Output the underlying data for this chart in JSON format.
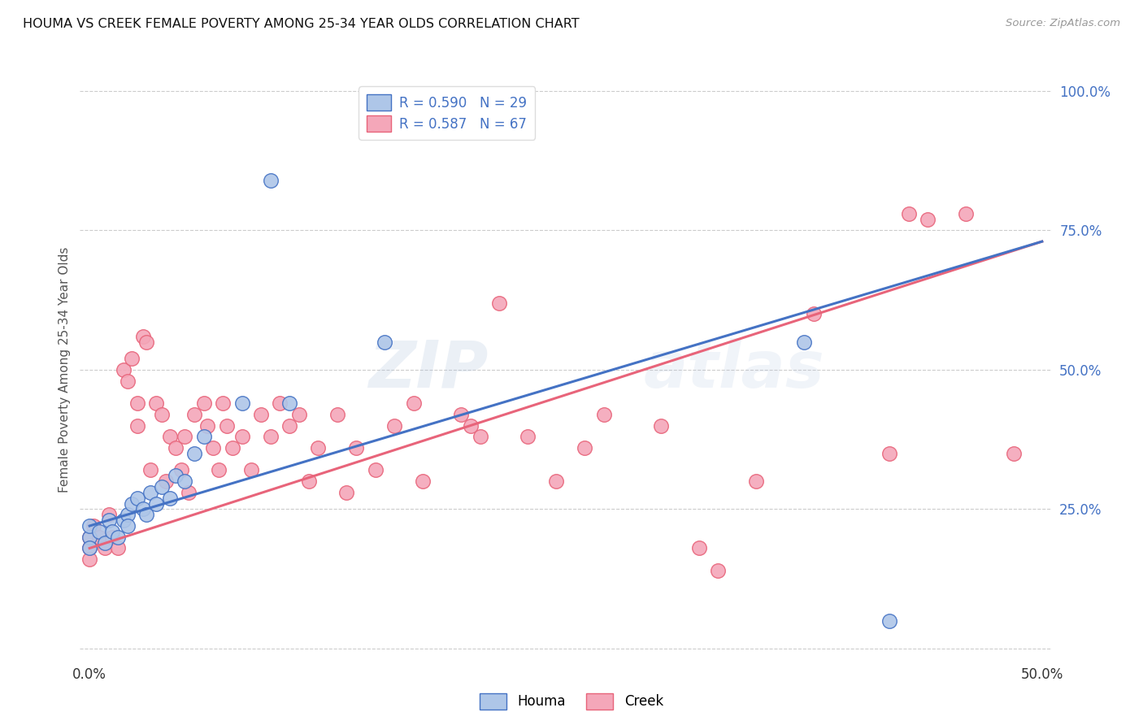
{
  "title": "HOUMA VS CREEK FEMALE POVERTY AMONG 25-34 YEAR OLDS CORRELATION CHART",
  "source": "Source: ZipAtlas.com",
  "ylabel": "Female Poverty Among 25-34 Year Olds",
  "xlim": [
    -0.005,
    0.505
  ],
  "ylim": [
    -0.02,
    1.02
  ],
  "xtick_positions": [
    0.0,
    0.5
  ],
  "xticklabels": [
    "0.0%",
    "50.0%"
  ],
  "ytick_positions": [
    0.0,
    0.25,
    0.5,
    0.75,
    1.0
  ],
  "yticklabels": [
    "",
    "25.0%",
    "50.0%",
    "75.0%",
    "100.0%"
  ],
  "houma_R": 0.59,
  "houma_N": 29,
  "creek_R": 0.587,
  "creek_N": 67,
  "houma_color": "#aec6e8",
  "creek_color": "#f4a7b9",
  "houma_line_color": "#4472c4",
  "creek_line_color": "#e8647a",
  "watermark": "ZIPatlas",
  "houma_x": [
    0.0,
    0.0,
    0.0,
    0.005,
    0.008,
    0.01,
    0.012,
    0.015,
    0.018,
    0.02,
    0.02,
    0.022,
    0.025,
    0.028,
    0.03,
    0.032,
    0.035,
    0.038,
    0.042,
    0.045,
    0.05,
    0.055,
    0.06,
    0.08,
    0.095,
    0.105,
    0.155,
    0.375,
    0.42
  ],
  "houma_y": [
    0.2,
    0.22,
    0.18,
    0.21,
    0.19,
    0.23,
    0.21,
    0.2,
    0.23,
    0.24,
    0.22,
    0.26,
    0.27,
    0.25,
    0.24,
    0.28,
    0.26,
    0.29,
    0.27,
    0.31,
    0.3,
    0.35,
    0.38,
    0.44,
    0.84,
    0.44,
    0.55,
    0.55,
    0.05
  ],
  "creek_x": [
    0.0,
    0.0,
    0.0,
    0.002,
    0.005,
    0.008,
    0.01,
    0.012,
    0.015,
    0.018,
    0.02,
    0.022,
    0.025,
    0.025,
    0.028,
    0.03,
    0.032,
    0.035,
    0.038,
    0.04,
    0.042,
    0.045,
    0.048,
    0.05,
    0.052,
    0.055,
    0.06,
    0.062,
    0.065,
    0.068,
    0.07,
    0.072,
    0.075,
    0.08,
    0.085,
    0.09,
    0.095,
    0.1,
    0.105,
    0.11,
    0.115,
    0.12,
    0.13,
    0.135,
    0.14,
    0.15,
    0.16,
    0.17,
    0.175,
    0.195,
    0.2,
    0.205,
    0.215,
    0.23,
    0.245,
    0.26,
    0.27,
    0.3,
    0.32,
    0.33,
    0.35,
    0.38,
    0.42,
    0.44,
    0.46,
    0.485,
    0.43
  ],
  "creek_y": [
    0.2,
    0.18,
    0.16,
    0.22,
    0.2,
    0.18,
    0.24,
    0.2,
    0.18,
    0.5,
    0.48,
    0.52,
    0.44,
    0.4,
    0.56,
    0.55,
    0.32,
    0.44,
    0.42,
    0.3,
    0.38,
    0.36,
    0.32,
    0.38,
    0.28,
    0.42,
    0.44,
    0.4,
    0.36,
    0.32,
    0.44,
    0.4,
    0.36,
    0.38,
    0.32,
    0.42,
    0.38,
    0.44,
    0.4,
    0.42,
    0.3,
    0.36,
    0.42,
    0.28,
    0.36,
    0.32,
    0.4,
    0.44,
    0.3,
    0.42,
    0.4,
    0.38,
    0.62,
    0.38,
    0.3,
    0.36,
    0.42,
    0.4,
    0.18,
    0.14,
    0.3,
    0.6,
    0.35,
    0.77,
    0.78,
    0.35,
    0.78
  ],
  "houma_line_x": [
    0.0,
    0.5
  ],
  "houma_line_y": [
    0.22,
    0.73
  ],
  "creek_line_x": [
    0.0,
    0.5
  ],
  "creek_line_y": [
    0.18,
    0.73
  ]
}
